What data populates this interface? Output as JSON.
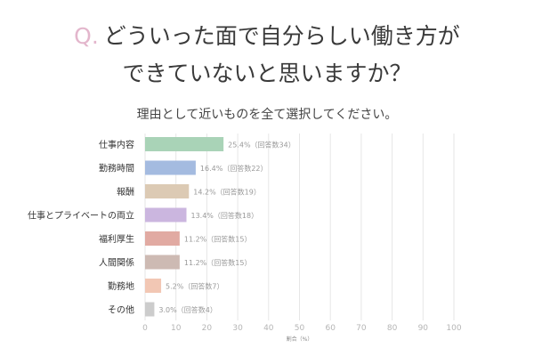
{
  "question": {
    "marker": "Q.",
    "line1": "どういった面で自分らしい働き方が",
    "line2": "できていないと思いますか？"
  },
  "subtitle": "理由として近いものを全て選択してください。",
  "chart_data": {
    "type": "bar",
    "orientation": "horizontal",
    "categories": [
      "仕事内容",
      "勤務時間",
      "報酬",
      "仕事とプライベートの両立",
      "福利厚生",
      "人間関係",
      "勤務地",
      "その他"
    ],
    "values": [
      25.4,
      16.4,
      14.2,
      13.4,
      11.2,
      11.2,
      5.2,
      3.0
    ],
    "value_labels": [
      "25.4%",
      "16.4%",
      "14.2%",
      "13.4%",
      "11.2%",
      "11.2%",
      "5.2%",
      "3.0%"
    ],
    "count_labels": [
      "（回答数34）",
      "（回答数22）",
      "（回答数19）",
      "（回答数18）",
      "（回答数15）",
      "（回答数15）",
      "（回答数7）",
      "（回答数4）"
    ],
    "bar_colors": [
      "#a9d3b7",
      "#a4bbe0",
      "#dccab4",
      "#cbb6df",
      "#e1aaa2",
      "#cdbab3",
      "#f2c7b4",
      "#cccccc"
    ],
    "xlim": [
      0,
      100
    ],
    "xticks": [
      "0",
      "10",
      "20",
      "30",
      "40",
      "50",
      "60",
      "70",
      "80",
      "90",
      "100"
    ],
    "xlabel": "割合（%）",
    "grid": true
  }
}
